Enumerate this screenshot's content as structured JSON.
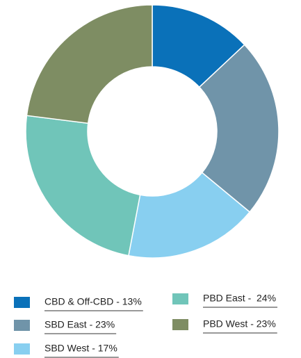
{
  "chart_data": {
    "type": "pie",
    "categories": [
      "CBD & Off-CBD - 13%",
      "SBD East - 23%",
      "SBD West - 17%",
      "PBD East -  24%",
      "PBD West - 23%"
    ],
    "values": [
      13,
      23,
      17,
      24,
      23
    ],
    "colors": [
      "#0a71b9",
      "#7094a9",
      "#88cff0",
      "#70c5b9",
      "#7e8d63"
    ],
    "donut": true
  }
}
